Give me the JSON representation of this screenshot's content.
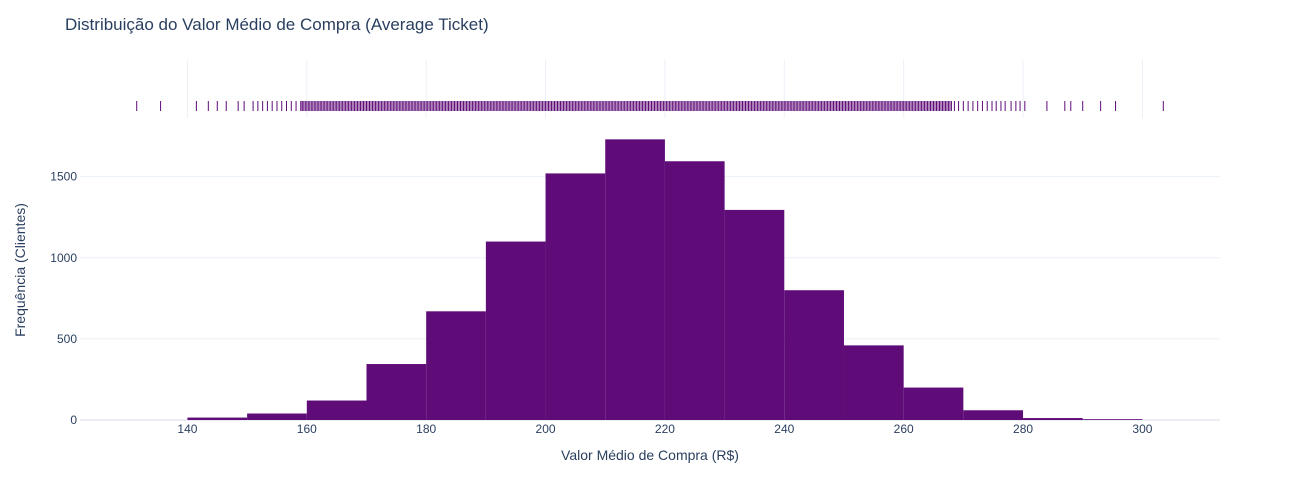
{
  "chart_data": {
    "type": "bar",
    "title": "Distribuição do Valor Médio de Compra (Average Ticket)",
    "xlabel": "Valor Médio de Compra (R$)",
    "ylabel": "Frequência (Clientes)",
    "bin_width": 10,
    "bin_starts": [
      140,
      150,
      160,
      170,
      180,
      190,
      200,
      210,
      220,
      230,
      240,
      250,
      260,
      270,
      280,
      290
    ],
    "values": [
      15,
      40,
      120,
      345,
      670,
      1100,
      1520,
      1730,
      1595,
      1295,
      800,
      460,
      200,
      60,
      12,
      5
    ],
    "xlim": [
      122,
      313
    ],
    "ylim": [
      0,
      1800
    ],
    "xticks": [
      140,
      160,
      180,
      200,
      220,
      240,
      260,
      280,
      300
    ],
    "yticks": [
      0,
      500,
      1000,
      1500
    ],
    "grid": true,
    "bar_color": "#5f0b78",
    "rug_color": "#5f0b78",
    "rug": {
      "sparse_left": [
        131.5,
        135.5,
        141.5,
        143.5,
        145,
        146.5,
        148.5,
        149.5,
        151,
        151.8,
        152.6,
        153.4,
        154.2,
        155,
        155.8,
        156.6,
        157.4,
        158.2,
        159
      ],
      "dense_range": [
        159,
        268
      ],
      "sparse_right": [
        268.5,
        269.2,
        270,
        270.8,
        271.6,
        272.4,
        273.2,
        274,
        274.8,
        275.5,
        276.3,
        277,
        278,
        278.8,
        279.5,
        280.3,
        284,
        287,
        288,
        290,
        293,
        295.5,
        303.5
      ]
    }
  }
}
